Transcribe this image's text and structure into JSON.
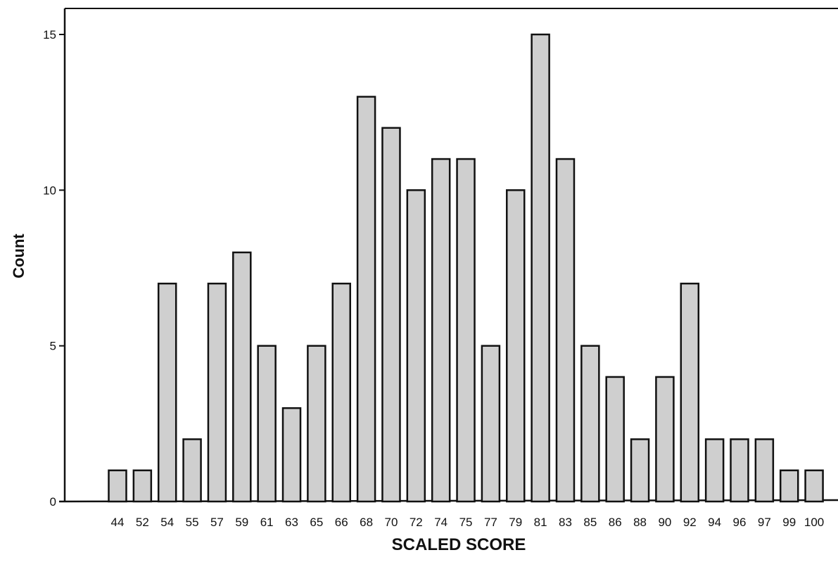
{
  "chart_data": {
    "type": "bar",
    "title": "",
    "xlabel": "SCALED SCORE",
    "ylabel": "Count",
    "ylim": [
      0,
      15
    ],
    "yticks": [
      "0",
      "5",
      "10",
      "15"
    ],
    "categories": [
      "44",
      "52",
      "54",
      "55",
      "57",
      "59",
      "61",
      "63",
      "65",
      "66",
      "68",
      "70",
      "72",
      "74",
      "75",
      "77",
      "79",
      "81",
      "83",
      "85",
      "86",
      "88",
      "90",
      "92",
      "94",
      "96",
      "97",
      "99",
      "100"
    ],
    "values": [
      1,
      1,
      7,
      2,
      7,
      8,
      5,
      3,
      5,
      7,
      13,
      12,
      10,
      11,
      11,
      5,
      10,
      15,
      11,
      5,
      4,
      2,
      4,
      7,
      2,
      2,
      2,
      1,
      1
    ],
    "grid": false,
    "bar_color": "#cfcfcf",
    "edge_color": "#111111"
  }
}
